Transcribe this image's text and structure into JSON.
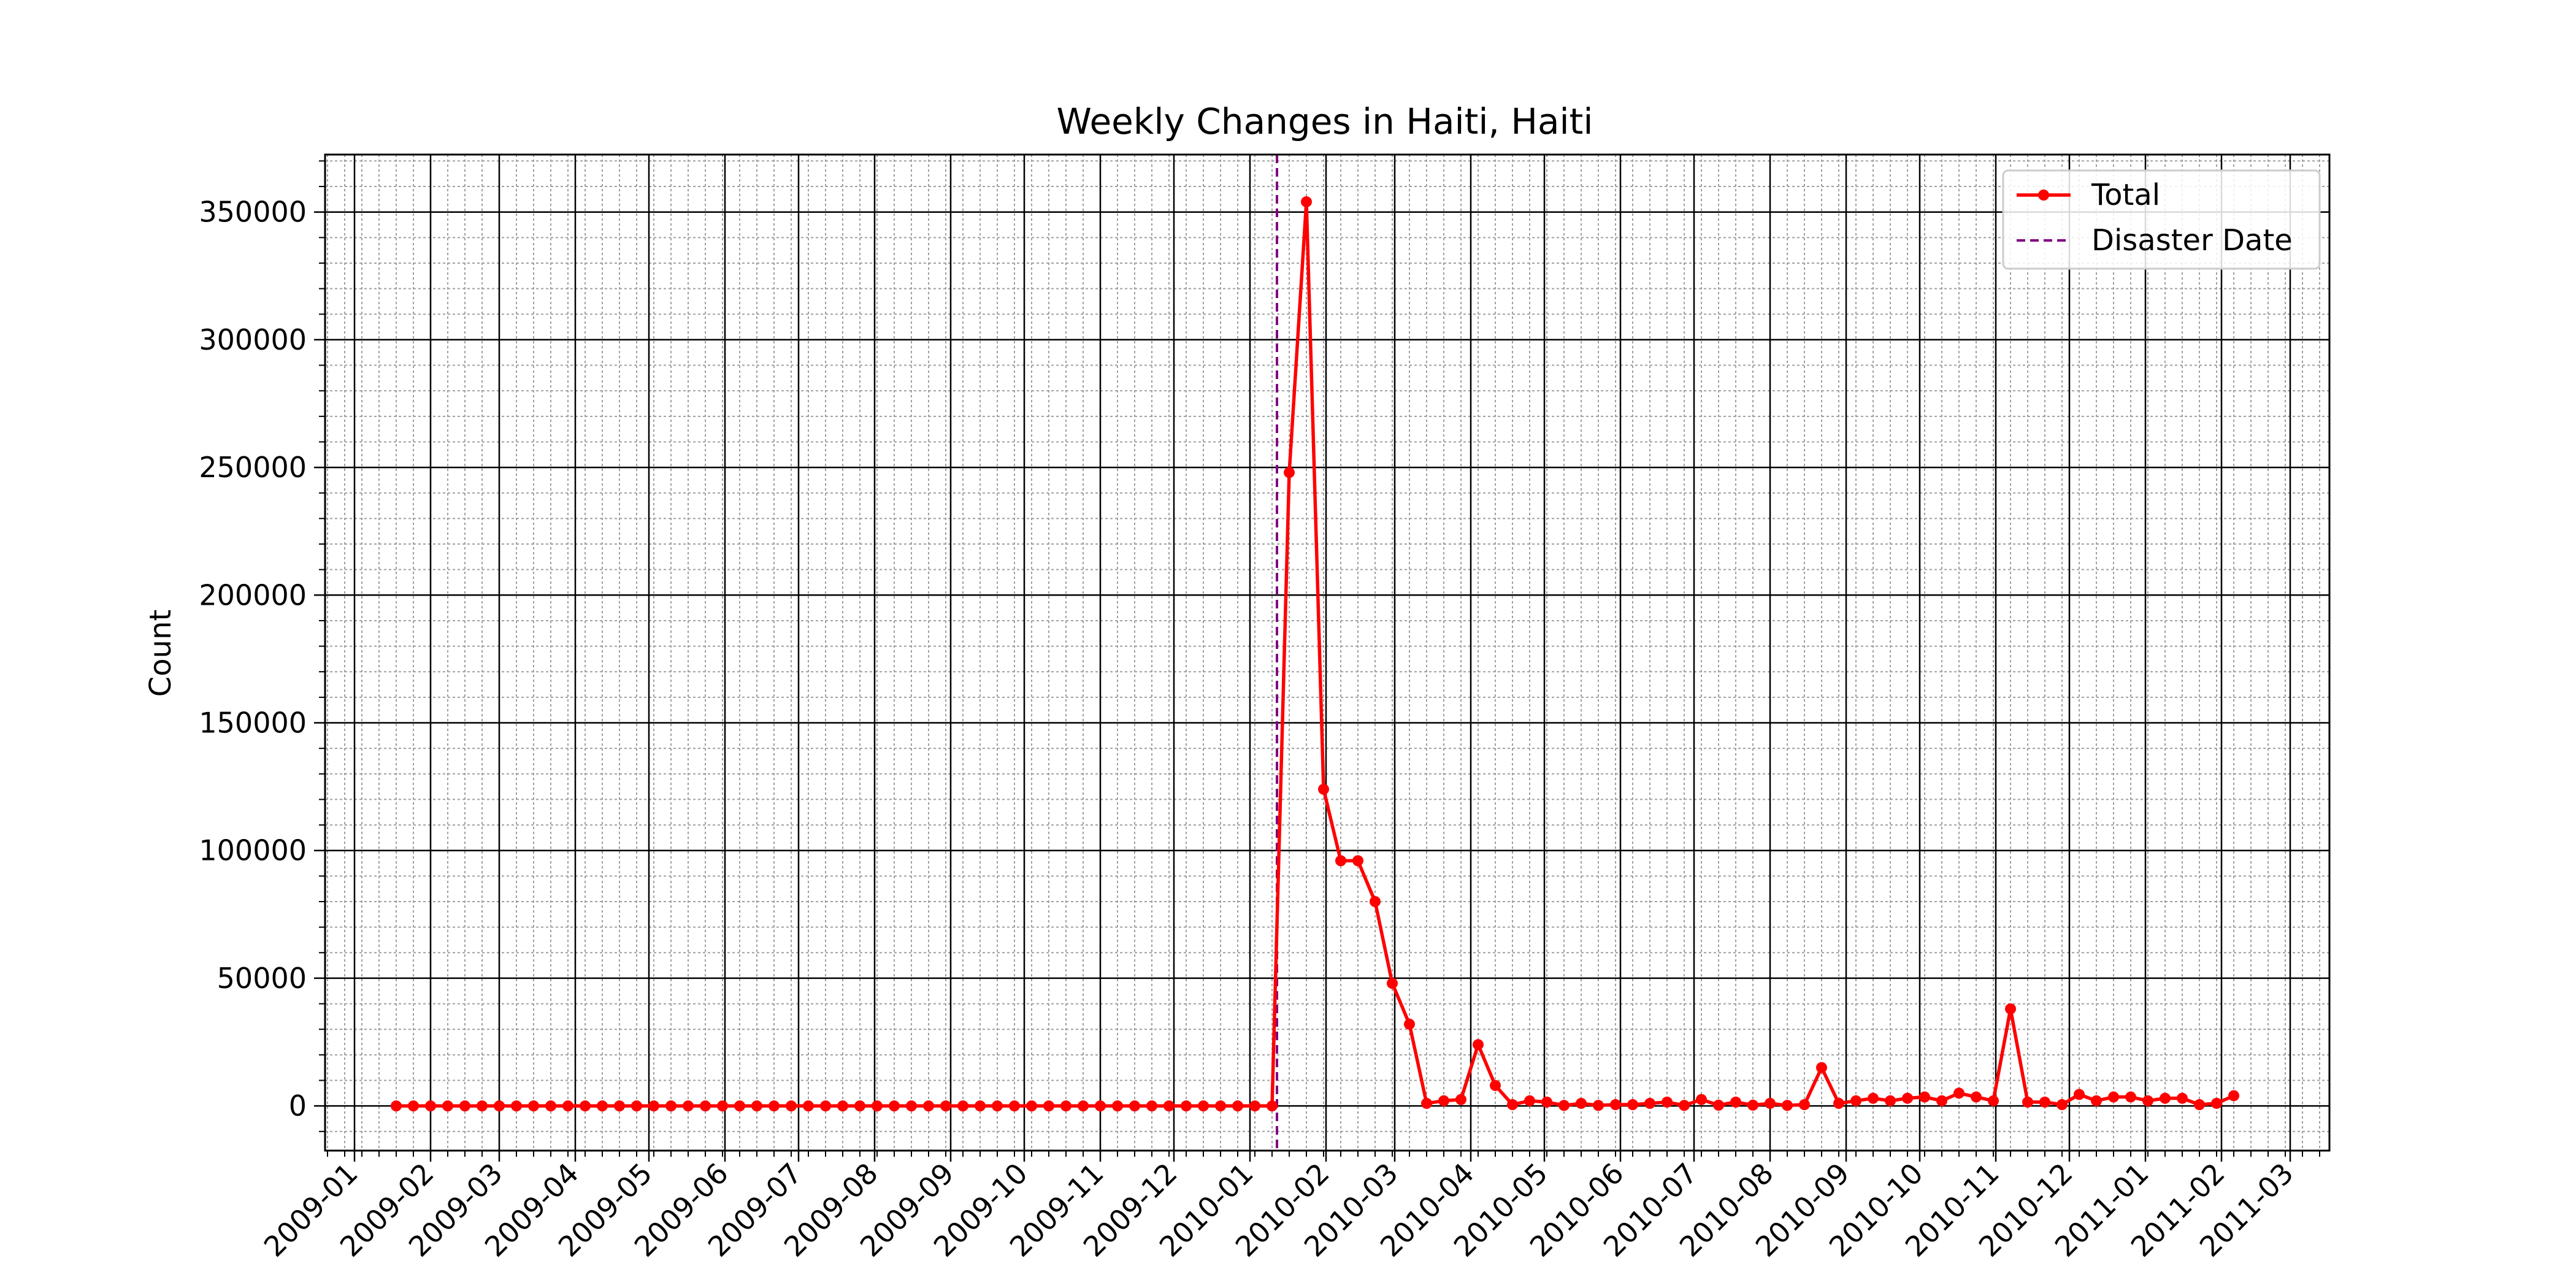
{
  "chart_data": {
    "type": "line",
    "title": "Weekly Changes in Haiti, Haiti",
    "xlabel": "",
    "ylabel": "Count",
    "x_start": "2009-01-18",
    "x_step_days": 7,
    "xlim": [
      "2008-12-20",
      "2011-03-17"
    ],
    "ylim": [
      -17500,
      372500
    ],
    "x_ticks": [
      "2009-01",
      "2009-02",
      "2009-03",
      "2009-04",
      "2009-05",
      "2009-06",
      "2009-07",
      "2009-08",
      "2009-09",
      "2009-10",
      "2009-11",
      "2009-12",
      "2010-01",
      "2010-02",
      "2010-03",
      "2010-04",
      "2010-05",
      "2010-06",
      "2010-07",
      "2010-08",
      "2010-09",
      "2010-10",
      "2010-11",
      "2010-12",
      "2011-01",
      "2011-02",
      "2011-03"
    ],
    "y_ticks": [
      0,
      50000,
      100000,
      150000,
      200000,
      250000,
      300000,
      350000
    ],
    "grid": true,
    "minor_grid": true,
    "legend": "top-right",
    "series": [
      {
        "name": "Total",
        "color": "#ff0000",
        "marker": "circle",
        "values": [
          0,
          0,
          0,
          0,
          0,
          0,
          0,
          0,
          0,
          0,
          0,
          0,
          0,
          0,
          0,
          0,
          0,
          0,
          0,
          0,
          0,
          0,
          0,
          0,
          0,
          0,
          0,
          0,
          0,
          0,
          0,
          0,
          0,
          0,
          0,
          0,
          0,
          0,
          0,
          0,
          0,
          0,
          0,
          0,
          0,
          0,
          0,
          0,
          0,
          0,
          0,
          0,
          248000,
          354000,
          124000,
          96000,
          96000,
          80000,
          48000,
          32000,
          1000,
          2000,
          2500,
          24000,
          8000,
          500,
          2000,
          1500,
          200,
          1000,
          200,
          500,
          500,
          1000,
          1500,
          200,
          2500,
          300,
          1500,
          300,
          1000,
          200,
          500,
          15000,
          1000,
          2000,
          3000,
          2000,
          3000,
          3500,
          2000,
          5000,
          3500,
          2000,
          38000,
          1500,
          1500,
          500,
          4500,
          2000,
          3500,
          3500,
          2000,
          3000,
          3000,
          500,
          1000,
          4000
        ]
      }
    ],
    "vlines": [
      {
        "name": "Disaster Date",
        "date": "2010-01-12",
        "color": "#800080",
        "style": "dashed"
      }
    ]
  }
}
